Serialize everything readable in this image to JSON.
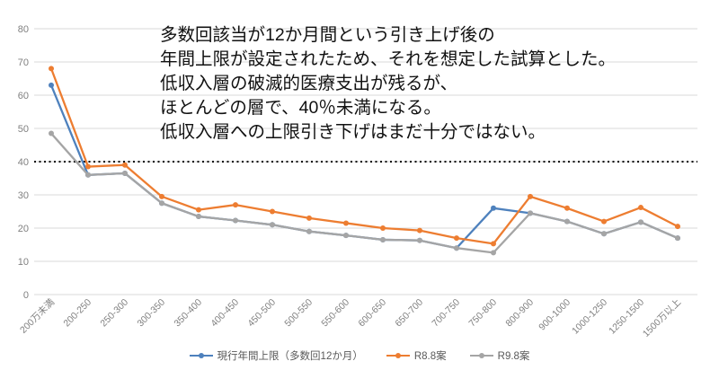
{
  "chart_data": {
    "type": "line",
    "title": "",
    "xlabel": "",
    "ylabel": "",
    "ylim": [
      0,
      80
    ],
    "ytick_step": 10,
    "yticks": [
      0,
      10,
      20,
      30,
      40,
      50,
      60,
      70,
      80
    ],
    "grid": true,
    "legend_position": "bottom",
    "categories": [
      "200万未満",
      "200-250",
      "250-300",
      "300-350",
      "350-400",
      "400-450",
      "450-500",
      "500-550",
      "550-600",
      "600-650",
      "650-700",
      "700-750",
      "750-800",
      "800-900",
      "900-1000",
      "1000-1250",
      "1250-1500",
      "1500万以上"
    ],
    "series": [
      {
        "name": "現行年間上限（多数回12か月）",
        "color": "#4e81bd",
        "values": [
          63,
          36,
          36.5,
          27.5,
          23.5,
          22.3,
          21,
          19,
          17.8,
          16.5,
          16.3,
          14,
          26,
          24.5,
          22,
          18.3,
          21.8,
          17
        ]
      },
      {
        "name": "R8.8案",
        "color": "#ed7d31",
        "values": [
          68,
          38.5,
          39,
          29.5,
          25.5,
          27,
          25,
          23,
          21.5,
          20,
          19.3,
          17,
          15.3,
          29.5,
          26,
          22,
          26.2,
          20.5
        ]
      },
      {
        "name": "R9.8案",
        "color": "#a5a5a5",
        "values": [
          48.5,
          36,
          36.5,
          27.5,
          23.5,
          22.3,
          21,
          19,
          17.8,
          16.5,
          16.3,
          14,
          12.6,
          24.5,
          22,
          18.3,
          21.8,
          17
        ]
      }
    ],
    "reference_line": {
      "value": 40,
      "style": "dotted",
      "color": "#000000"
    },
    "annotation": {
      "lines": [
        "多数回該当が12か月間という引き上げ後の",
        "年間上限が設定されたため、それを想定した試算とした。",
        "低収入層の破滅的医療支出が残るが、",
        "ほとんどの層で、40％未満になる。",
        "低収入層への上限引き下げはまだ十分ではない。"
      ]
    },
    "style": {
      "gridline_color": "#d9d9d9",
      "axis_text_color": "#808080",
      "legend_text_color": "#595959"
    }
  }
}
